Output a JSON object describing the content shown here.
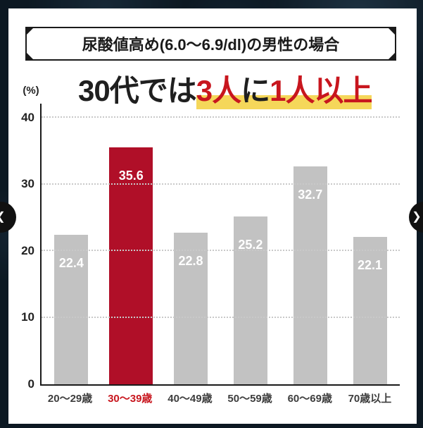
{
  "panel": {
    "bg_color": "#ffffff"
  },
  "title_box": {
    "text": "尿酸値高め(6.0～6.9/dl)の男性の場合",
    "border_color": "#1a1a1a"
  },
  "headline": {
    "segments": [
      {
        "text": "30代では",
        "color": "#1f1f1f",
        "highlight": false
      },
      {
        "text": "3人",
        "color": "#c8161e",
        "highlight": true
      },
      {
        "text": "に",
        "color": "#1f1f1f",
        "highlight": true
      },
      {
        "text": "1人以上",
        "color": "#c8161e",
        "highlight": true
      }
    ],
    "highlight_color": "#f5d75a"
  },
  "carousel": {
    "prev_icon": "❮",
    "next_icon": "❯"
  },
  "chart_data": {
    "type": "bar",
    "title": "尿酸値高め(6.0～6.9/dl)の男性の場合",
    "unit_label": "(%)",
    "categories": [
      "20～29歳",
      "30～39歳",
      "40～49歳",
      "50～59歳",
      "60～69歳",
      "70歳以上"
    ],
    "values": [
      22.4,
      35.6,
      22.8,
      25.2,
      32.7,
      22.1
    ],
    "highlight_index": 1,
    "ylim": [
      0,
      40
    ],
    "yticks": [
      0,
      10,
      20,
      30,
      40
    ],
    "grid": "dotted horizontal gridlines at 10,20,30,40",
    "bar_color": "#c2c2c2",
    "highlight_bar_color": "#b00f28",
    "value_label_color": "#ffffff",
    "xlabel": "",
    "ylabel": "(%)"
  }
}
